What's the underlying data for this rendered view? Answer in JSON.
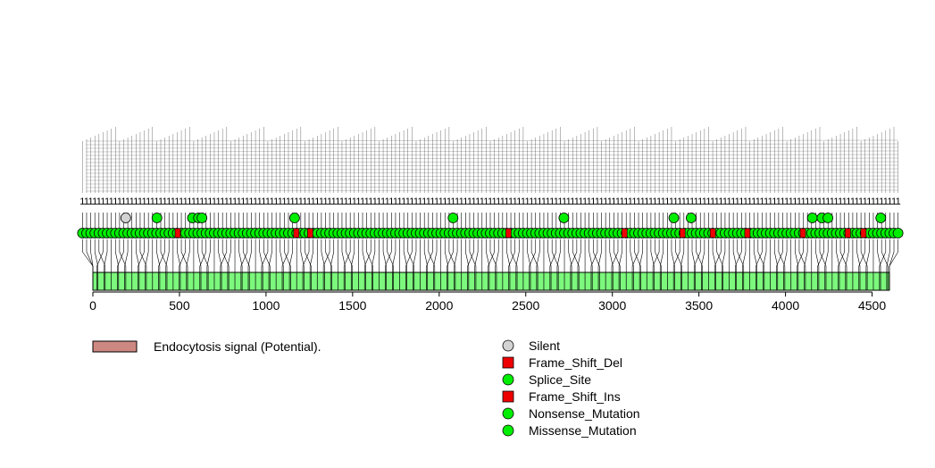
{
  "chart_data": {
    "type": "lollipop",
    "protein_length": 4600,
    "xlim": [
      0,
      4650
    ],
    "x_ticks": [
      0,
      500,
      1000,
      1500,
      2000,
      2500,
      3000,
      3500,
      4000,
      4500
    ],
    "colors": {
      "domain_bar": "#7cf87c",
      "domain_region": "#ce8882",
      "silent": "#d3d3d3",
      "missense": "#00ee00",
      "frameshift": "#ee0000"
    },
    "legend_domains": [
      {
        "label": "Endocytosis signal (Potential).",
        "color": "#ce8882",
        "shape": "rect"
      }
    ],
    "legend_mutations": [
      {
        "label": "Silent",
        "color": "#d3d3d3",
        "shape": "circle"
      },
      {
        "label": "Frame_Shift_Del",
        "color": "#ee0000",
        "shape": "square"
      },
      {
        "label": "Splice_Site",
        "color": "#00ee00",
        "shape": "circle"
      },
      {
        "label": "Frame_Shift_Ins",
        "color": "#ee0000",
        "shape": "square"
      },
      {
        "label": "Nonsense_Mutation",
        "color": "#00ee00",
        "shape": "circle"
      },
      {
        "label": "Missense_Mutation",
        "color": "#00ee00",
        "shape": "circle"
      }
    ],
    "stacked_mutations": [
      {
        "pos": 190,
        "type": "Silent"
      },
      {
        "pos": 370,
        "type": "Missense_Mutation"
      },
      {
        "pos": 575,
        "type": "Missense_Mutation"
      },
      {
        "pos": 610,
        "type": "Missense_Mutation"
      },
      {
        "pos": 630,
        "type": "Missense_Mutation"
      },
      {
        "pos": 1165,
        "type": "Missense_Mutation"
      },
      {
        "pos": 2080,
        "type": "Missense_Mutation"
      },
      {
        "pos": 2720,
        "type": "Missense_Mutation"
      },
      {
        "pos": 3355,
        "type": "Missense_Mutation"
      },
      {
        "pos": 3455,
        "type": "Missense_Mutation"
      },
      {
        "pos": 4155,
        "type": "Missense_Mutation"
      },
      {
        "pos": 4210,
        "type": "Missense_Mutation"
      },
      {
        "pos": 4245,
        "type": "Missense_Mutation"
      },
      {
        "pos": 4550,
        "type": "Missense_Mutation"
      }
    ],
    "frameshift_positions": [
      490,
      1175,
      1255,
      2400,
      3070,
      3405,
      3580,
      3780,
      4100,
      4360,
      4450
    ],
    "mutation_positions_start": -60,
    "mutation_positions_end": 4650,
    "mutation_count": 199
  }
}
